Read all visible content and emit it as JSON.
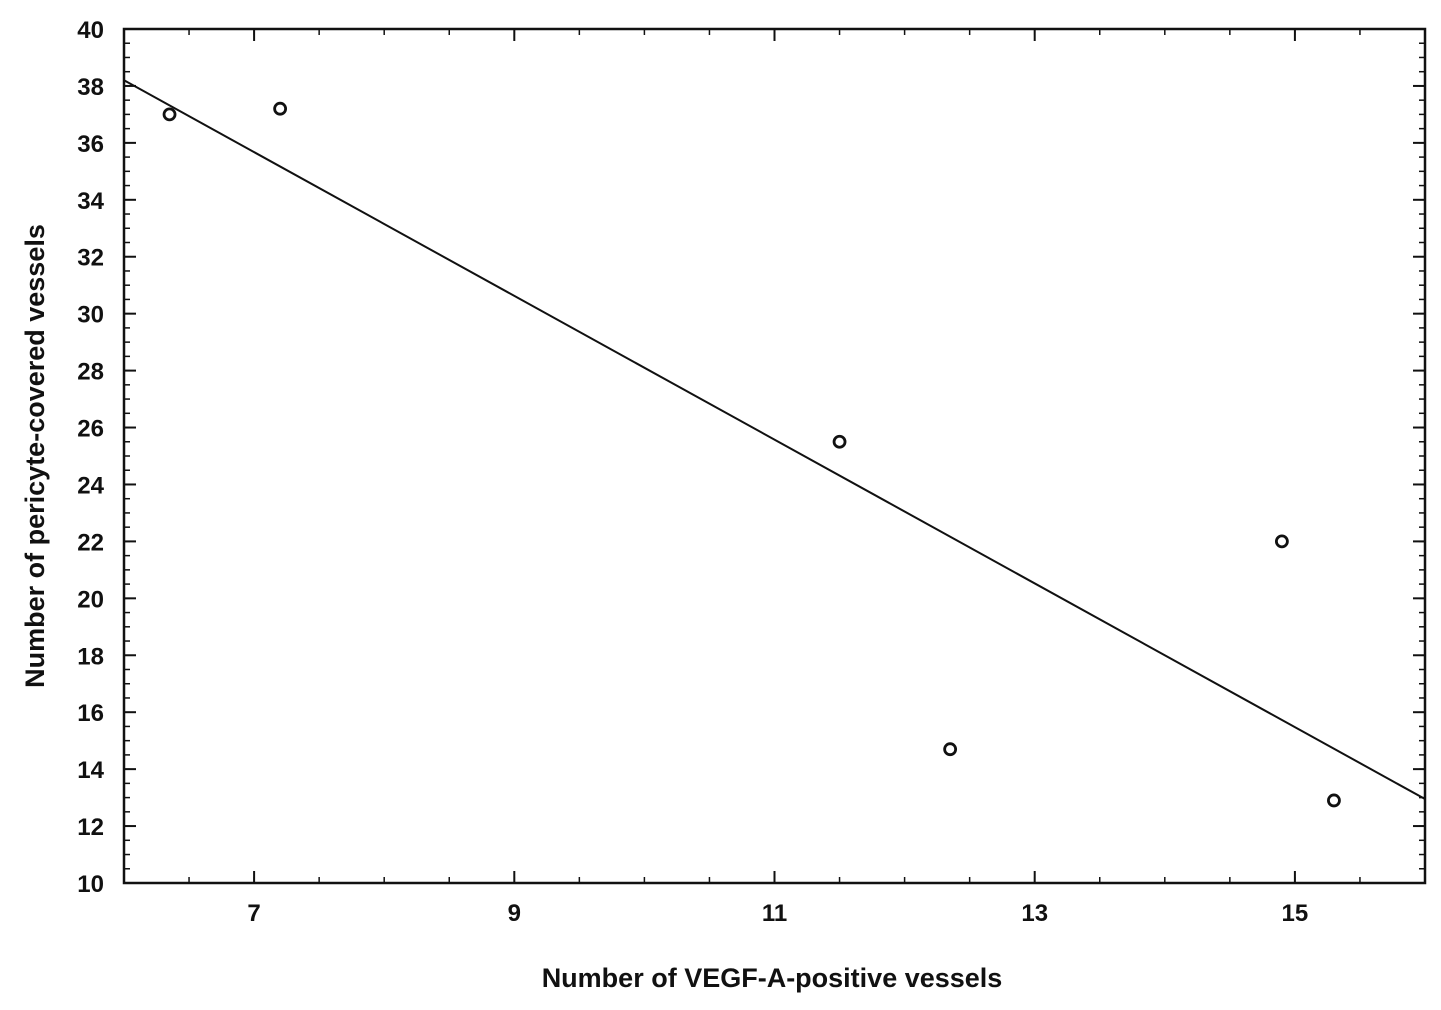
{
  "chart_data": {
    "type": "scatter",
    "xlabel": "Number of VEGF-A-positive vessels",
    "ylabel": "Number of pericyte-covered vessels",
    "xlim": [
      6.0,
      16.0
    ],
    "ylim": [
      10,
      40
    ],
    "x_ticks": [
      7,
      9,
      11,
      13,
      15
    ],
    "y_ticks": [
      10,
      12,
      14,
      16,
      18,
      20,
      22,
      24,
      26,
      28,
      30,
      32,
      34,
      36,
      38,
      40
    ],
    "x_minor_step": 0.5,
    "y_minor_step": 0.5,
    "grid": false,
    "legend": "none",
    "points": [
      {
        "x": 6.35,
        "y": 37.0
      },
      {
        "x": 7.2,
        "y": 37.2
      },
      {
        "x": 11.5,
        "y": 25.5
      },
      {
        "x": 12.35,
        "y": 14.7
      },
      {
        "x": 14.9,
        "y": 22.0
      },
      {
        "x": 15.3,
        "y": 12.9
      }
    ],
    "fit_line": {
      "x": [
        6.0,
        16.0
      ],
      "y": [
        38.2,
        12.95
      ]
    },
    "colors": {
      "marker": "#111111",
      "line": "#111111",
      "axes": "#111111"
    }
  }
}
